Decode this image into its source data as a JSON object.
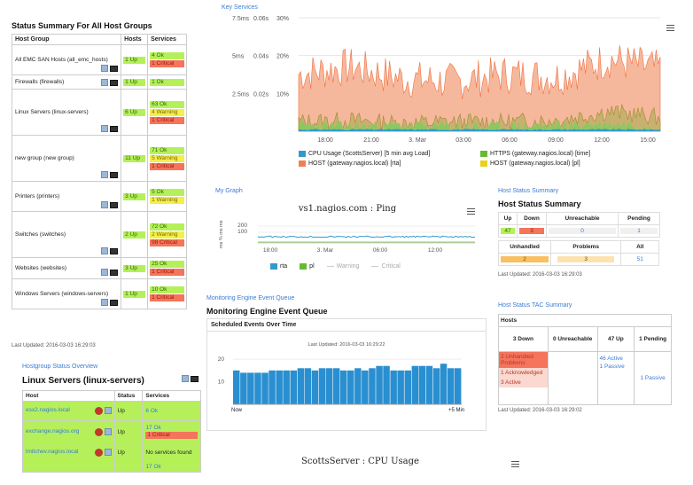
{
  "status_summary": {
    "title": "Status Summary For All Host Groups",
    "headers": [
      "Host Group",
      "Hosts",
      "Services"
    ],
    "rows": [
      {
        "group": "All EMC SAN Hosts (all_emc_hosts)",
        "hosts": "1 Up",
        "services": [
          {
            "t": "4 Ok",
            "c": "ok"
          },
          {
            "t": "1 Critical",
            "c": "crit"
          }
        ]
      },
      {
        "group": "Firewalls (firewalls)",
        "hosts": "1 Up",
        "services": [
          {
            "t": "1 Ok",
            "c": "ok"
          }
        ]
      },
      {
        "group": "Linux Servers (linux-servers)",
        "hosts": "6 Up",
        "services": [
          {
            "t": "63 Ok",
            "c": "ok"
          },
          {
            "t": "4 Warning",
            "c": "warn"
          },
          {
            "t": "1 Critical",
            "c": "crit"
          }
        ]
      },
      {
        "group": "new group (new group)",
        "hosts": "11 Up",
        "services": [
          {
            "t": "71 Ok",
            "c": "ok"
          },
          {
            "t": "5 Warning",
            "c": "warn"
          },
          {
            "t": "1 Critical",
            "c": "crit"
          }
        ]
      },
      {
        "group": "Printers (printers)",
        "hosts": "3 Up",
        "services": [
          {
            "t": "5 Ok",
            "c": "ok"
          },
          {
            "t": "1 Warning",
            "c": "warn"
          }
        ]
      },
      {
        "group": "Switches (switches)",
        "hosts": "2 Up",
        "services": [
          {
            "t": "72 Ok",
            "c": "ok"
          },
          {
            "t": "2 Warning",
            "c": "warn"
          },
          {
            "t": "98 Critical",
            "c": "crit"
          }
        ]
      },
      {
        "group": "Websites (websites)",
        "hosts": "3 Up",
        "services": [
          {
            "t": "25 Ok",
            "c": "ok"
          },
          {
            "t": "1 Critical",
            "c": "crit"
          }
        ]
      },
      {
        "group": "Windows Servers (windows-servers)",
        "hosts": "1 Up",
        "services": [
          {
            "t": "10 Ok",
            "c": "ok"
          },
          {
            "t": "1 Critical",
            "c": "crit"
          }
        ]
      }
    ],
    "last_updated": "Last Updated: 2016-03-03 16:29:03"
  },
  "key_services": {
    "dashlet_title": "Key Services",
    "y_ticks_left": [
      "7.5ms",
      "5ms",
      "2.5ms"
    ],
    "y_ticks_mid": [
      "0.06s",
      "0.04s",
      "0.02s"
    ],
    "y_ticks_right": [
      "30%",
      "20%",
      "10%"
    ],
    "x_ticks": [
      "18:00",
      "21:00",
      "3. Mar",
      "03:00",
      "06:00",
      "09:00",
      "12:00",
      "15:00"
    ],
    "legend": [
      {
        "name": "CPU Usage (ScottsServer) [5 min avg Load]",
        "color": "#3399cc"
      },
      {
        "name": "HTTPS (gateway.nagios.local) [time]",
        "color": "#66bb33"
      },
      {
        "name": "HOST (gateway.nagios.local) [rta]",
        "color": "#f08050"
      },
      {
        "name": "HOST (gateway.nagios.local) [pl]",
        "color": "#e8d020"
      }
    ]
  },
  "my_graph": {
    "dashlet_title": "My Graph",
    "title": "vs1.nagios.com : Ping",
    "ylabel": "ms % ms ms",
    "y_ticks": [
      "200",
      "100"
    ],
    "x_ticks": [
      "18:00",
      "3. Mar",
      "06:00",
      "12:00"
    ],
    "legend": [
      {
        "name": "rta",
        "color": "#3399cc"
      },
      {
        "name": "pl",
        "color": "#66bb33"
      },
      {
        "name": "Warning",
        "color": "#cccccc"
      },
      {
        "name": "Critical",
        "color": "#cccccc"
      }
    ]
  },
  "host_status_summary": {
    "dashlet_title": "Host Status Summary",
    "title": "Host Status Summary",
    "row1_headers": [
      "Up",
      "Down",
      "Unreachable",
      "Pending"
    ],
    "row1_values": [
      "47",
      "3",
      "0",
      "1"
    ],
    "row2_headers": [
      "Unhandled",
      "Problems",
      "All"
    ],
    "row2_values": [
      "2",
      "3",
      "51"
    ],
    "last_updated": "Last Updated: 2016-03-03 16:29:03"
  },
  "event_queue": {
    "dashlet_title": "Monitoring Engine Event Queue",
    "title": "Monitoring Engine Event Queue",
    "chart_title": "Scheduled Events Over Time",
    "last_updated": "Last Updated: 2016-03-03 16:29:22",
    "x_now": "Now",
    "x_end": "+5 Min"
  },
  "hostgroup_overview": {
    "dashlet_title": "Hostgroup Status Overview",
    "title": "Linux Servers (linux-servers)",
    "headers": [
      "Host",
      "Status",
      "Services"
    ],
    "rows": [
      {
        "host": "esx2.nagios.local",
        "status": "Up",
        "services": [
          {
            "t": "6 Ok",
            "c": "ok"
          }
        ]
      },
      {
        "host": "exchange.nagios.org",
        "status": "Up",
        "services": [
          {
            "t": "17 Ok",
            "c": "ok"
          },
          {
            "t": "1 Critical",
            "c": "crit"
          }
        ]
      },
      {
        "host": "lmitchev.nagios.local",
        "status": "Up",
        "services": [
          {
            "t": "No services found",
            "c": "none"
          }
        ]
      },
      {
        "host": "",
        "status": "",
        "services": [
          {
            "t": "17 Ok",
            "c": "ok"
          }
        ]
      }
    ]
  },
  "tac_summary": {
    "dashlet_title": "Host Status TAC Summary",
    "header": "Hosts",
    "cols": [
      "3 Down",
      "0 Unreachable",
      "47 Up",
      "1 Pending"
    ],
    "down_items": [
      "2 Unhandled Problems",
      "1 Acknowledged",
      "3 Active"
    ],
    "up_items": [
      "46 Active",
      "1 Passive"
    ],
    "pending_items": [
      "1 Passive"
    ],
    "last_updated": "Last Updated: 2016-03-03 16:29:02"
  },
  "cpu_usage": {
    "title": "ScottsServer : CPU Usage"
  },
  "chart_data": [
    {
      "type": "area",
      "title": "",
      "x": [
        "18:00",
        "21:00",
        "3. Mar",
        "03:00",
        "06:00",
        "09:00",
        "12:00",
        "15:00"
      ],
      "series": [
        {
          "name": "CPU Usage (ScottsServer) [5 min avg Load]",
          "values": [
            0.1,
            0.1,
            0.1,
            0.1,
            0.1,
            0.1,
            0.1,
            0.1
          ]
        },
        {
          "name": "HTTPS (gateway.nagios.local) [time]",
          "values": [
            0.3,
            0.2,
            0.3,
            0.2,
            0.2,
            0.3,
            0.4,
            0.3
          ]
        },
        {
          "name": "HOST (gateway.nagios.local) [rta]",
          "values": [
            3.5,
            4.0,
            3.2,
            3.0,
            3.5,
            3.3,
            4.5,
            3.8
          ]
        },
        {
          "name": "HOST (gateway.nagios.local) [pl]",
          "values": [
            0.5,
            0.6,
            0.4,
            0.5,
            0.5,
            0.6,
            1.2,
            0.8
          ]
        }
      ],
      "ylim": [
        0,
        7.5
      ]
    },
    {
      "type": "line",
      "title": "vs1.nagios.com : Ping",
      "x": [
        "18:00",
        "3. Mar",
        "06:00",
        "12:00"
      ],
      "series": [
        {
          "name": "rta",
          "values": [
            20,
            20,
            20,
            20
          ]
        },
        {
          "name": "pl",
          "values": [
            0,
            0,
            0,
            0
          ]
        }
      ],
      "ylim": [
        0,
        250
      ]
    },
    {
      "type": "bar",
      "title": "Scheduled Events Over Time",
      "values": [
        15,
        14,
        14,
        14,
        14,
        15,
        15,
        15,
        15,
        16,
        16,
        15,
        16,
        16,
        16,
        15,
        15,
        16,
        15,
        16,
        17,
        17,
        15,
        15,
        15,
        17,
        17,
        17,
        16,
        18,
        16,
        16
      ],
      "ylim": [
        0,
        22
      ]
    }
  ]
}
